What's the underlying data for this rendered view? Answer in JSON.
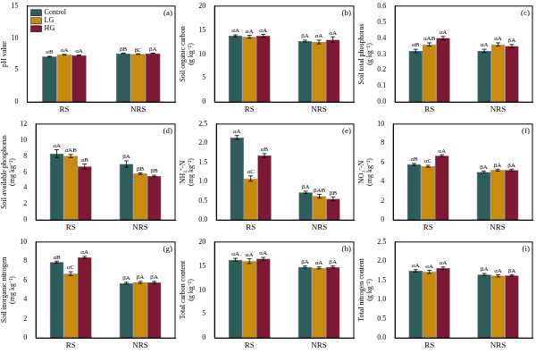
{
  "chart_data": [
    {
      "type": "bar",
      "panel": "(a)",
      "ylabel": [
        "pH value"
      ],
      "categories": [
        "RS",
        "NRS"
      ],
      "ylim": [
        0,
        15
      ],
      "yticks": [
        0,
        5,
        10,
        15
      ],
      "grid": false,
      "legend": "upper left",
      "series": [
        {
          "name": "Control",
          "color": "#2f5d5c",
          "values": [
            7.1,
            7.6
          ],
          "errors": [
            0.05,
            0.05
          ],
          "letters": [
            "αB",
            "βB"
          ]
        },
        {
          "name": "LG",
          "color": "#c98a10",
          "values": [
            7.4,
            7.5
          ],
          "errors": [
            0.05,
            0.04
          ],
          "letters": [
            "αA",
            "βC"
          ]
        },
        {
          "name": "HG",
          "color": "#7d1935",
          "values": [
            7.3,
            7.6
          ],
          "errors": [
            0.05,
            0.04
          ],
          "letters": [
            "αA",
            "βA"
          ]
        }
      ]
    },
    {
      "type": "bar",
      "panel": "(b)",
      "ylabel": [
        "Soil organic carbon",
        "(g kg⁻¹)"
      ],
      "categories": [
        "RS",
        "NRS"
      ],
      "ylim": [
        0,
        20
      ],
      "yticks": [
        0,
        5,
        10,
        15,
        20
      ],
      "grid": false,
      "series": [
        {
          "name": "Control",
          "color": "#2f5d5c",
          "values": [
            13.8,
            12.7
          ],
          "errors": [
            0.2,
            0.2
          ],
          "letters": [
            "αA",
            "βA"
          ]
        },
        {
          "name": "LG",
          "color": "#c98a10",
          "values": [
            13.6,
            12.5
          ],
          "errors": [
            0.3,
            0.4
          ],
          "letters": [
            "αA",
            "αA"
          ]
        },
        {
          "name": "HG",
          "color": "#7d1935",
          "values": [
            13.8,
            13.0
          ],
          "errors": [
            0.3,
            0.6
          ],
          "letters": [
            "αA",
            "αA"
          ]
        }
      ]
    },
    {
      "type": "bar",
      "panel": "(c)",
      "ylabel": [
        "Soil total phosphorus",
        "(g kg⁻¹)"
      ],
      "categories": [
        "RS",
        "NRS"
      ],
      "ylim": [
        0,
        0.6
      ],
      "yticks": [
        {
          "value": 0,
          "label": "0.0"
        },
        0.1,
        0.2,
        0.3,
        0.4,
        0.5,
        0.6
      ],
      "grid": false,
      "series": [
        {
          "name": "Control",
          "color": "#2f5d5c",
          "values": [
            0.32,
            0.32
          ],
          "errors": [
            0.01,
            0.01
          ],
          "letters": [
            "αB",
            "αA"
          ]
        },
        {
          "name": "LG",
          "color": "#c98a10",
          "values": [
            0.36,
            0.36
          ],
          "errors": [
            0.01,
            0.01
          ],
          "letters": [
            "αAB",
            "αA"
          ]
        },
        {
          "name": "HG",
          "color": "#7d1935",
          "values": [
            0.4,
            0.35
          ],
          "errors": [
            0.01,
            0.01
          ],
          "letters": [
            "αA",
            "βA"
          ]
        }
      ]
    },
    {
      "type": "bar",
      "panel": "(d)",
      "ylabel": [
        "Soil available phosphorus",
        "(mg kg⁻¹)"
      ],
      "categories": [
        "RS",
        "NRS"
      ],
      "ylim": [
        0,
        12
      ],
      "yticks": [
        0,
        2,
        4,
        6,
        8,
        10,
        12
      ],
      "grid": false,
      "series": [
        {
          "name": "Control",
          "color": "#2f5d5c",
          "values": [
            8.3,
            7.0
          ],
          "errors": [
            0.5,
            0.4
          ],
          "letters": [
            "αA",
            "βA"
          ]
        },
        {
          "name": "LG",
          "color": "#c98a10",
          "values": [
            8.0,
            5.8
          ],
          "errors": [
            0.2,
            0.1
          ],
          "letters": [
            "αAB",
            "βB"
          ]
        },
        {
          "name": "HG",
          "color": "#7d1935",
          "values": [
            6.7,
            5.5
          ],
          "errors": [
            0.3,
            0.1
          ],
          "letters": [
            "αB",
            "βB"
          ]
        }
      ]
    },
    {
      "type": "bar",
      "panel": "(e)",
      "ylabel": [
        "NH₄⁺-N",
        "(mg kg⁻¹)"
      ],
      "categories": [
        "RS",
        "NRS"
      ],
      "ylim": [
        0,
        2.5
      ],
      "yticks": [
        {
          "value": 0,
          "label": "0.0"
        },
        0.5,
        {
          "value": 1,
          "label": "1.0"
        },
        1.5,
        {
          "value": 2,
          "label": "2.0"
        },
        2.5
      ],
      "grid": false,
      "series": [
        {
          "name": "Control",
          "color": "#2f5d5c",
          "values": [
            2.15,
            0.72
          ],
          "errors": [
            0.05,
            0.03
          ],
          "letters": [
            "αA",
            "βA"
          ]
        },
        {
          "name": "LG",
          "color": "#c98a10",
          "values": [
            1.08,
            0.62
          ],
          "errors": [
            0.07,
            0.05
          ],
          "letters": [
            "αC",
            "βAB"
          ]
        },
        {
          "name": "HG",
          "color": "#7d1935",
          "values": [
            1.68,
            0.55
          ],
          "errors": [
            0.05,
            0.05
          ],
          "letters": [
            "αB",
            "βB"
          ]
        }
      ]
    },
    {
      "type": "bar",
      "panel": "(f)",
      "ylabel": [
        "NO₃⁻-N",
        "(mg kg⁻¹)"
      ],
      "categories": [
        "RS",
        "NRS"
      ],
      "ylim": [
        0,
        10
      ],
      "yticks": [
        0,
        2,
        4,
        6,
        8,
        10
      ],
      "grid": false,
      "series": [
        {
          "name": "Control",
          "color": "#2f5d5c",
          "values": [
            5.8,
            5.0
          ],
          "errors": [
            0.1,
            0.1
          ],
          "letters": [
            "αB",
            "βA"
          ]
        },
        {
          "name": "LG",
          "color": "#c98a10",
          "values": [
            5.6,
            5.2
          ],
          "errors": [
            0.1,
            0.1
          ],
          "letters": [
            "αC",
            "βA"
          ]
        },
        {
          "name": "HG",
          "color": "#7d1935",
          "values": [
            6.7,
            5.2
          ],
          "errors": [
            0.1,
            0.1
          ],
          "letters": [
            "αA",
            "βA"
          ]
        }
      ]
    },
    {
      "type": "bar",
      "panel": "(g)",
      "ylabel": [
        "Soil inorganic nitrogen",
        "(mg kg⁻¹)"
      ],
      "categories": [
        "RS",
        "NRS"
      ],
      "ylim": [
        0,
        10
      ],
      "yticks": [
        0,
        2,
        4,
        6,
        8,
        10
      ],
      "grid": false,
      "series": [
        {
          "name": "Control",
          "color": "#2f5d5c",
          "values": [
            7.9,
            5.7
          ],
          "errors": [
            0.1,
            0.1
          ],
          "letters": [
            "αB",
            "βA"
          ]
        },
        {
          "name": "LG",
          "color": "#c98a10",
          "values": [
            6.7,
            5.8
          ],
          "errors": [
            0.2,
            0.1
          ],
          "letters": [
            "αC",
            "βA"
          ]
        },
        {
          "name": "HG",
          "color": "#7d1935",
          "values": [
            8.4,
            5.8
          ],
          "errors": [
            0.1,
            0.1
          ],
          "letters": [
            "αA",
            "βA"
          ]
        }
      ]
    },
    {
      "type": "bar",
      "panel": "(h)",
      "ylabel": [
        "Total carbon content",
        "(g kg⁻¹)"
      ],
      "categories": [
        "RS",
        "NRS"
      ],
      "ylim": [
        0,
        20
      ],
      "yticks": [
        0,
        5,
        10,
        15,
        20
      ],
      "grid": false,
      "series": [
        {
          "name": "Control",
          "color": "#2f5d5c",
          "values": [
            16.3,
            14.8
          ],
          "errors": [
            0.3,
            0.2
          ],
          "letters": [
            "αA",
            "βA"
          ]
        },
        {
          "name": "LG",
          "color": "#c98a10",
          "values": [
            16.0,
            14.6
          ],
          "errors": [
            0.5,
            0.2
          ],
          "letters": [
            "αA",
            "αA"
          ]
        },
        {
          "name": "HG",
          "color": "#7d1935",
          "values": [
            16.5,
            14.8
          ],
          "errors": [
            0.3,
            0.2
          ],
          "letters": [
            "αA",
            "βA"
          ]
        }
      ]
    },
    {
      "type": "bar",
      "panel": "(i)",
      "ylabel": [
        "Total nitrogen content",
        "(g kg⁻¹)"
      ],
      "categories": [
        "RS",
        "NRS"
      ],
      "ylim": [
        0,
        2.5
      ],
      "yticks": [
        {
          "value": 0,
          "label": "0.0"
        },
        0.5,
        {
          "value": 1,
          "label": "1.0"
        },
        1.5,
        {
          "value": 2,
          "label": "2.0"
        },
        2.5
      ],
      "grid": false,
      "series": [
        {
          "name": "Control",
          "color": "#2f5d5c",
          "values": [
            1.75,
            1.65
          ],
          "errors": [
            0.03,
            0.03
          ],
          "letters": [
            "αA",
            "βA"
          ]
        },
        {
          "name": "LG",
          "color": "#c98a10",
          "values": [
            1.72,
            1.62
          ],
          "errors": [
            0.04,
            0.03
          ],
          "letters": [
            "αA",
            "αA"
          ]
        },
        {
          "name": "HG",
          "color": "#7d1935",
          "values": [
            1.82,
            1.63
          ],
          "errors": [
            0.03,
            0.02
          ],
          "letters": [
            "αA",
            "βA"
          ]
        }
      ]
    }
  ]
}
